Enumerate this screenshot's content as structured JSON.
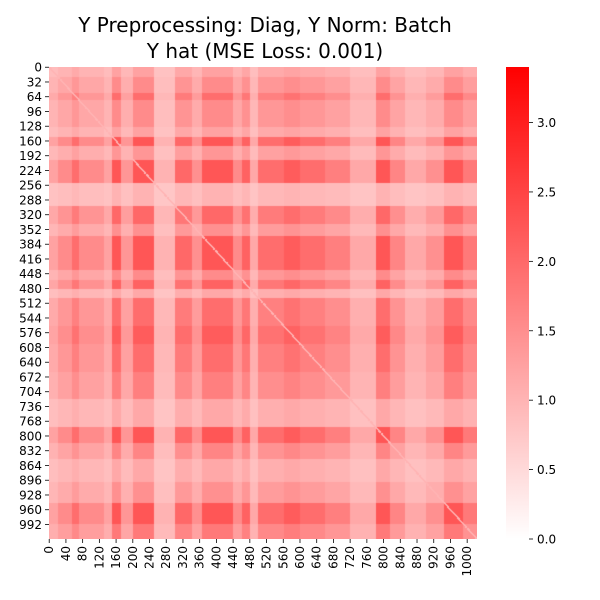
{
  "chart_data": {
    "type": "heatmap",
    "title": {
      "line1": "Y Preprocessing: Diag, Y Norm: Batch",
      "line2": "Y hat (MSE Loss: 0.001)"
    },
    "matrix_size": 1024,
    "x_tick_labels": [
      "0",
      "40",
      "80",
      "120",
      "160",
      "200",
      "240",
      "280",
      "320",
      "360",
      "400",
      "440",
      "480",
      "520",
      "560",
      "600",
      "640",
      "680",
      "720",
      "760",
      "800",
      "840",
      "880",
      "920",
      "960",
      "1000"
    ],
    "y_tick_labels": [
      "0",
      "32",
      "64",
      "96",
      "128",
      "160",
      "192",
      "224",
      "256",
      "288",
      "320",
      "352",
      "384",
      "416",
      "448",
      "480",
      "512",
      "544",
      "576",
      "608",
      "640",
      "672",
      "704",
      "736",
      "768",
      "800",
      "832",
      "864",
      "896",
      "928",
      "960",
      "992"
    ],
    "colorbar": {
      "min": 0.0,
      "max": 3.4,
      "ticks": [
        "0.0",
        "0.5",
        "1.0",
        "1.5",
        "2.0",
        "2.5",
        "3.0"
      ],
      "color_low": "#ffffff",
      "color_high": "#ff0000"
    },
    "band_profile": {
      "description": "approximate per-index intensity weights along each axis; cell value = base + scale*w_i*w_j",
      "base": 0.7,
      "scale": 1.55,
      "diagonal_value": 1.0,
      "bands": [
        {
          "start": 0,
          "end": 20,
          "w": 0.35
        },
        {
          "start": 20,
          "end": 55,
          "w": 0.55
        },
        {
          "start": 55,
          "end": 70,
          "w": 0.8
        },
        {
          "start": 70,
          "end": 130,
          "w": 0.55
        },
        {
          "start": 130,
          "end": 150,
          "w": 0.35
        },
        {
          "start": 150,
          "end": 170,
          "w": 1.0
        },
        {
          "start": 170,
          "end": 200,
          "w": 0.45
        },
        {
          "start": 200,
          "end": 250,
          "w": 1.0
        },
        {
          "start": 250,
          "end": 300,
          "w": 0.2
        },
        {
          "start": 300,
          "end": 340,
          "w": 0.85
        },
        {
          "start": 340,
          "end": 365,
          "w": 0.5
        },
        {
          "start": 365,
          "end": 440,
          "w": 1.0
        },
        {
          "start": 440,
          "end": 460,
          "w": 0.55
        },
        {
          "start": 460,
          "end": 480,
          "w": 0.9
        },
        {
          "start": 480,
          "end": 500,
          "w": 0.3
        },
        {
          "start": 500,
          "end": 560,
          "w": 0.8
        },
        {
          "start": 560,
          "end": 600,
          "w": 0.95
        },
        {
          "start": 600,
          "end": 660,
          "w": 0.8
        },
        {
          "start": 660,
          "end": 720,
          "w": 0.65
        },
        {
          "start": 720,
          "end": 780,
          "w": 0.3
        },
        {
          "start": 780,
          "end": 815,
          "w": 1.0
        },
        {
          "start": 815,
          "end": 850,
          "w": 0.6
        },
        {
          "start": 850,
          "end": 900,
          "w": 0.3
        },
        {
          "start": 900,
          "end": 945,
          "w": 0.5
        },
        {
          "start": 945,
          "end": 990,
          "w": 1.0
        },
        {
          "start": 990,
          "end": 1024,
          "w": 0.7
        }
      ]
    }
  }
}
